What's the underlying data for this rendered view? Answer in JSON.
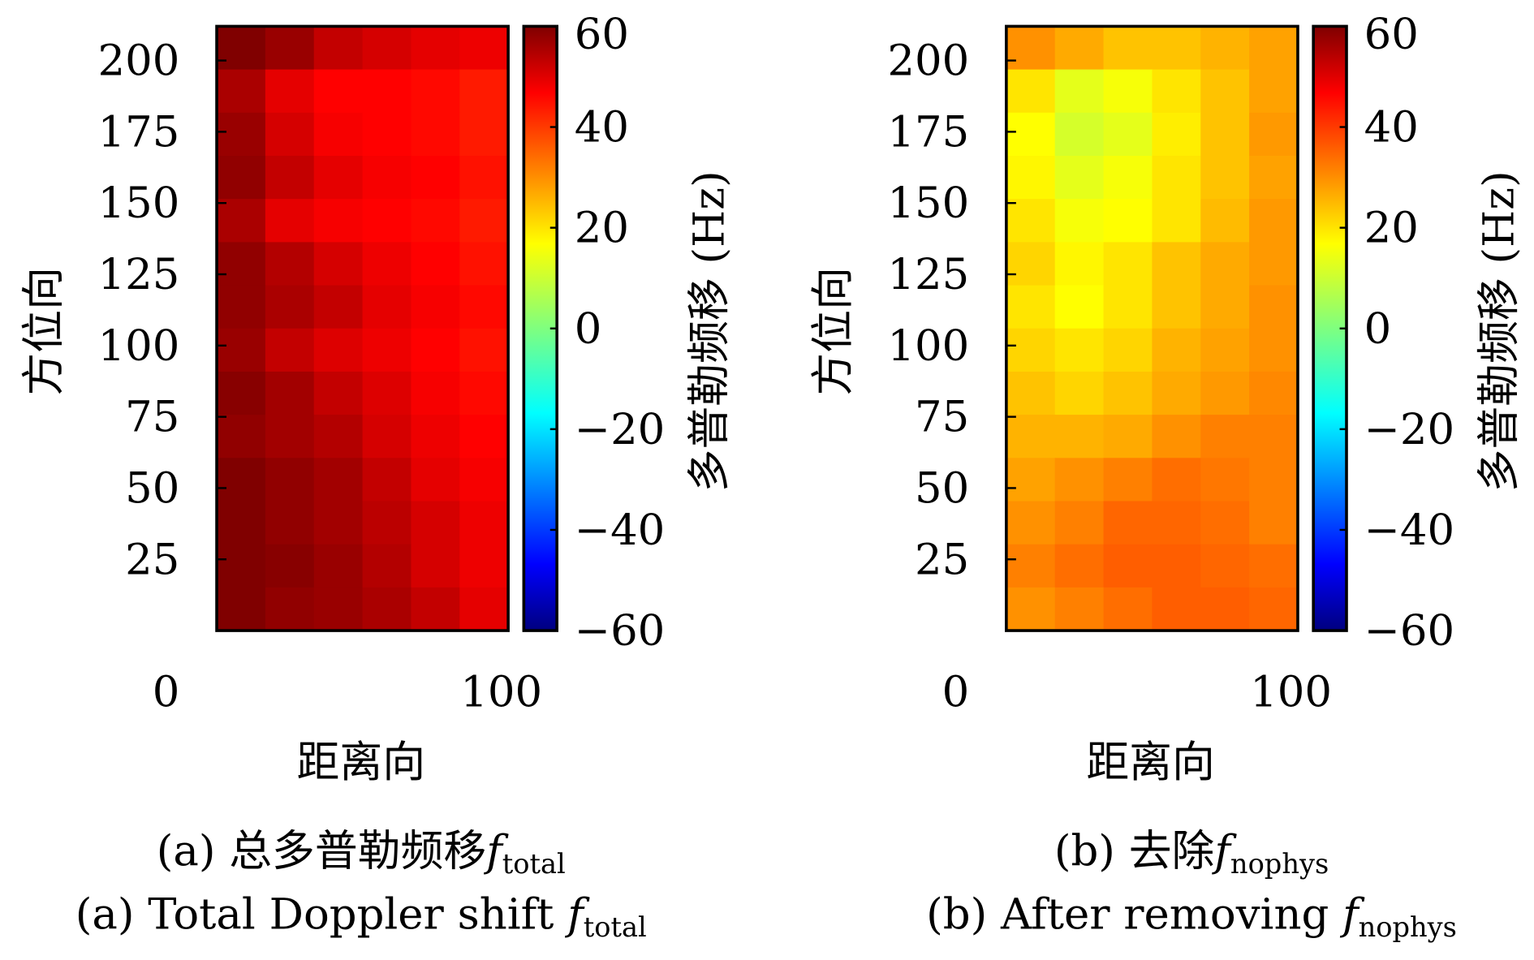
{
  "colormap": "jet",
  "chart_data": [
    {
      "type": "heatmap",
      "caption_zh": "(a) 总多普勒频移",
      "caption_en": "(a) Total Doppler shift ",
      "caption_symbol": "f",
      "caption_subscript": "total",
      "xlabel": "距离向",
      "ylabel": "方位向",
      "colorbar_label": "多普勒频移 (Hz)",
      "x_ticks": [
        "0",
        "100"
      ],
      "y_ticks": [
        "200",
        "175",
        "150",
        "125",
        "100",
        "75",
        "50",
        "25"
      ],
      "y_tick_values": [
        200,
        175,
        150,
        125,
        100,
        75,
        50,
        25
      ],
      "ylim": [
        0,
        212
      ],
      "clim": [
        -60,
        60
      ],
      "colorbar_ticks": [
        "60",
        "40",
        "20",
        "0",
        "−20",
        "−40",
        "−60"
      ],
      "colorbar_tick_values": [
        60,
        40,
        20,
        0,
        -20,
        -40,
        -60
      ],
      "values": [
        [
          60,
          57,
          52,
          50,
          48,
          47
        ],
        [
          55,
          48,
          45,
          45,
          44,
          42
        ],
        [
          57,
          50,
          46,
          45,
          44,
          42
        ],
        [
          58,
          52,
          48,
          46,
          45,
          43
        ],
        [
          55,
          48,
          46,
          45,
          44,
          42
        ],
        [
          58,
          54,
          50,
          47,
          45,
          43
        ],
        [
          58,
          55,
          52,
          48,
          46,
          44
        ],
        [
          57,
          52,
          49,
          47,
          45,
          43
        ],
        [
          59,
          56,
          52,
          49,
          46,
          44
        ],
        [
          58,
          56,
          54,
          50,
          47,
          45
        ],
        [
          60,
          58,
          56,
          52,
          48,
          46
        ],
        [
          60,
          58,
          56,
          53,
          50,
          47
        ],
        [
          60,
          59,
          57,
          54,
          50,
          47
        ],
        [
          60,
          58,
          57,
          55,
          52,
          48
        ]
      ]
    },
    {
      "type": "heatmap",
      "caption_zh": "(b) 去除",
      "caption_en": "(b) After removing ",
      "caption_symbol": "f",
      "caption_subscript": "nophys",
      "xlabel": "距离向",
      "ylabel": "方位向",
      "colorbar_label": "多普勒频移 (Hz)",
      "x_ticks": [
        "0",
        "100"
      ],
      "y_ticks": [
        "200",
        "175",
        "150",
        "125",
        "100",
        "75",
        "50",
        "25"
      ],
      "y_tick_values": [
        200,
        175,
        150,
        125,
        100,
        75,
        50,
        25
      ],
      "ylim": [
        0,
        212
      ],
      "clim": [
        -60,
        60
      ],
      "colorbar_ticks": [
        "60",
        "40",
        "20",
        "0",
        "−20",
        "−40",
        "−60"
      ],
      "colorbar_tick_values": [
        60,
        40,
        20,
        0,
        -20,
        -40,
        -60
      ],
      "values": [
        [
          28,
          25,
          22,
          22,
          24,
          26
        ],
        [
          18,
          12,
          14,
          18,
          22,
          26
        ],
        [
          15,
          10,
          12,
          17,
          22,
          27
        ],
        [
          16,
          12,
          14,
          18,
          22,
          26
        ],
        [
          18,
          14,
          15,
          18,
          23,
          27
        ],
        [
          20,
          16,
          18,
          22,
          25,
          27
        ],
        [
          18,
          15,
          18,
          22,
          25,
          28
        ],
        [
          20,
          18,
          20,
          24,
          26,
          28
        ],
        [
          22,
          20,
          22,
          25,
          27,
          29
        ],
        [
          24,
          24,
          25,
          28,
          30,
          30
        ],
        [
          26,
          28,
          30,
          32,
          31,
          30
        ],
        [
          28,
          30,
          33,
          33,
          32,
          30
        ],
        [
          30,
          32,
          34,
          34,
          33,
          32
        ],
        [
          28,
          30,
          32,
          34,
          34,
          33
        ]
      ]
    }
  ]
}
